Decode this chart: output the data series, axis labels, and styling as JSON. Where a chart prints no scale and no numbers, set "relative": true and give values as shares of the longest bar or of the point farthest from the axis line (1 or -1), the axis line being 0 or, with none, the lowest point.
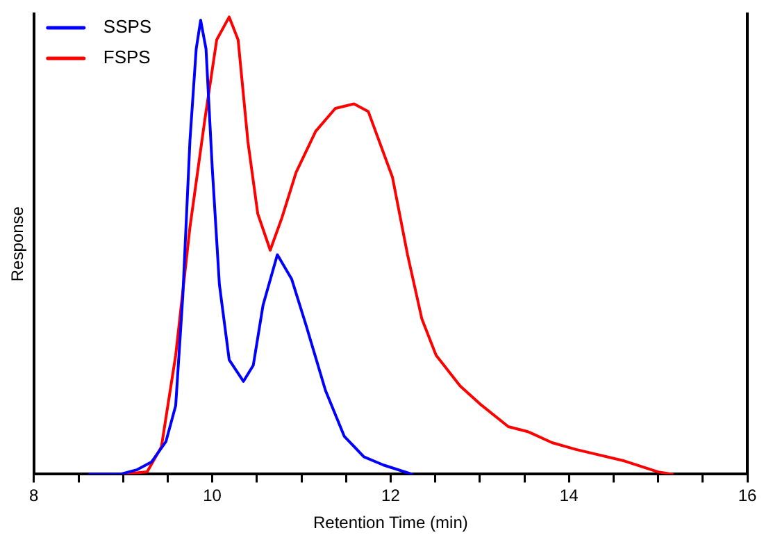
{
  "chart_data": {
    "type": "line",
    "xlabel": "Retention Time (min)",
    "ylabel": "Response",
    "relative": true,
    "legend": "top left",
    "grid": false,
    "marker": "none",
    "line_style": "solid",
    "xlim": [
      8,
      16
    ],
    "xticks": [
      8,
      {
        "value": 8.5,
        "label": null
      },
      {
        "value": 9,
        "label": null
      },
      {
        "value": 9.5,
        "label": null
      },
      10,
      {
        "value": 10.5,
        "label": null
      },
      {
        "value": 11,
        "label": null
      },
      {
        "value": 11.5,
        "label": null
      },
      12,
      {
        "value": 12.5,
        "label": null
      },
      {
        "value": 13,
        "label": null
      },
      {
        "value": 13.5,
        "label": null
      },
      14,
      {
        "value": 14.5,
        "label": null
      },
      {
        "value": 15,
        "label": null
      },
      {
        "value": 15.5,
        "label": null
      },
      16
    ],
    "series": [
      {
        "name": "SSPS",
        "color": "#0000ff",
        "x": [
          8.62,
          8.97,
          9.16,
          9.32,
          9.48,
          9.59,
          9.67,
          9.75,
          9.82,
          9.87,
          9.93,
          10.0,
          10.08,
          10.19,
          10.35,
          10.46,
          10.57,
          10.73,
          10.89,
          11.05,
          11.27,
          11.48,
          11.7,
          11.92,
          12.24
        ],
        "values": [
          0,
          0,
          0.01,
          0.027,
          0.071,
          0.15,
          0.39,
          0.73,
          0.93,
          0.993,
          0.93,
          0.67,
          0.415,
          0.25,
          0.203,
          0.238,
          0.37,
          0.48,
          0.427,
          0.327,
          0.183,
          0.083,
          0.038,
          0.02,
          0
        ]
      },
      {
        "name": "FSPS",
        "color": "#ff0000",
        "x": [
          9.0,
          9.27,
          9.43,
          9.59,
          9.75,
          9.92,
          10.05,
          10.19,
          10.29,
          10.4,
          10.51,
          10.65,
          10.78,
          10.94,
          11.16,
          11.38,
          11.59,
          11.75,
          12.02,
          12.19,
          12.35,
          12.51,
          12.78,
          13.0,
          13.32,
          13.54,
          13.81,
          14.08,
          14.62,
          15.0,
          15.16
        ],
        "values": [
          0,
          0.005,
          0.06,
          0.26,
          0.54,
          0.78,
          0.95,
          1.0,
          0.95,
          0.727,
          0.57,
          0.49,
          0.56,
          0.66,
          0.75,
          0.8,
          0.81,
          0.793,
          0.65,
          0.48,
          0.34,
          0.26,
          0.193,
          0.154,
          0.104,
          0.093,
          0.069,
          0.054,
          0.029,
          0.005,
          0
        ]
      }
    ]
  }
}
